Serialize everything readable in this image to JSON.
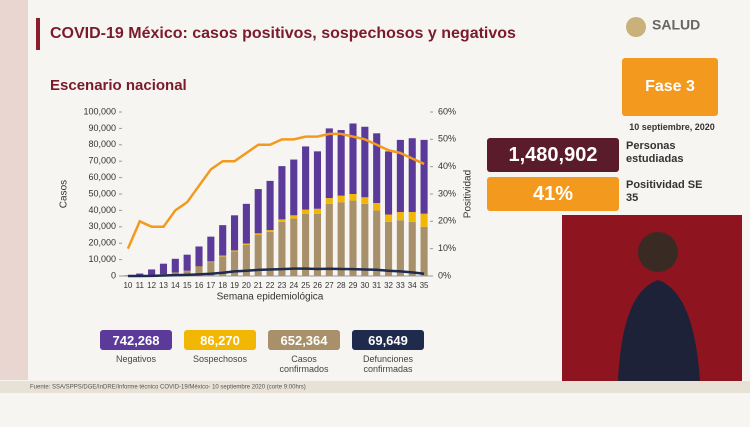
{
  "header": {
    "title": "COVID-19 México: casos positivos, sospechosos y negativos",
    "subtitle": "Escenario nacional",
    "logo": "SALUD",
    "phase": "Fase 3",
    "date": "10 septiembre, 2020"
  },
  "kpis": [
    {
      "value": "1,480,902",
      "label": "Personas estudiadas"
    },
    {
      "value": "41%",
      "label": "Positividad SE 35"
    }
  ],
  "totals": [
    "742,268",
    "86,270",
    "652,364",
    "69,649"
  ],
  "source": "Fuente: SSA/SPPS/DGE/InDRE/Informe técnico COVID-19/México- 10 septiembre 2020 (corte 9:00hrs)",
  "chart_data": {
    "type": "bar",
    "x_label": "Semana epidemiológica",
    "y_label": "Casos",
    "y2_label": "Positividad",
    "categories": [
      10,
      11,
      12,
      13,
      14,
      15,
      16,
      17,
      18,
      19,
      20,
      21,
      22,
      23,
      24,
      25,
      26,
      27,
      28,
      29,
      30,
      31,
      32,
      33,
      34,
      35
    ],
    "series": [
      {
        "name": "Negativos",
        "type": "bar",
        "color": "#5b3a99",
        "values": [
          300,
          1400,
          3450,
          6400,
          8400,
          9800,
          12200,
          15100,
          18500,
          21400,
          24200,
          27000,
          30000,
          32500,
          34000,
          38500,
          35000,
          42500,
          40000,
          43000,
          43000,
          42500,
          38500,
          44000,
          45000,
          45000
        ]
      },
      {
        "name": "Sospechosos",
        "type": "bar",
        "color": "#f2b705",
        "values": [
          0,
          0,
          50,
          100,
          100,
          200,
          300,
          400,
          500,
          600,
          800,
          1000,
          1000,
          1500,
          2000,
          2500,
          3000,
          3500,
          4000,
          4000,
          4000,
          4500,
          4500,
          5000,
          6000,
          8000
        ]
      },
      {
        "name": "Casos confirmados",
        "type": "bar",
        "color": "#a8906a",
        "values": [
          0,
          100,
          500,
          1000,
          2000,
          3000,
          5500,
          8500,
          12000,
          15000,
          19000,
          25000,
          27000,
          33000,
          35000,
          38000,
          38000,
          44000,
          45000,
          46000,
          44000,
          40000,
          33000,
          34000,
          33000,
          30000
        ]
      },
      {
        "name": "Defunciones confirmadas",
        "type": "line",
        "color": "#1f2a4d",
        "values": [
          0,
          20,
          80,
          300,
          500,
          700,
          1000,
          1400,
          2000,
          2800,
          3200,
          3700,
          4000,
          4200,
          4500,
          4500,
          4300,
          4400,
          4300,
          4200,
          4000,
          3800,
          3200,
          2800,
          2200,
          1400
        ]
      },
      {
        "type": "line",
        "axis": "y2",
        "color": "#f39a1e",
        "values": [
          10,
          20,
          18,
          18,
          24,
          27,
          33,
          39,
          42,
          42,
          45,
          48,
          48,
          50,
          50,
          51,
          51,
          52,
          52,
          51,
          50,
          48,
          46,
          45,
          43,
          41
        ]
      }
    ],
    "ylim": [
      0,
      100000
    ],
    "yticks": [
      {
        "value": 0,
        "label": "0"
      },
      {
        "value": 10000,
        "label": "10,000"
      },
      {
        "value": 20000,
        "label": "20,000"
      },
      {
        "value": 30000,
        "label": "30,000"
      },
      {
        "value": 40000,
        "label": "40,000"
      },
      {
        "value": 50000,
        "label": "50,000"
      },
      {
        "value": 60000,
        "label": "60,000"
      },
      {
        "value": 70000,
        "label": "70,000"
      },
      {
        "value": 80000,
        "label": "80,000"
      },
      {
        "value": 90000,
        "label": "90,000"
      },
      {
        "value": 100000,
        "label": "100,000"
      }
    ],
    "y2lim": [
      0,
      60
    ],
    "y2ticks": [
      {
        "value": 0,
        "label": "0%"
      },
      {
        "value": 10,
        "label": "10%"
      },
      {
        "value": 20,
        "label": "20%"
      },
      {
        "value": 30,
        "label": "30%"
      },
      {
        "value": 40,
        "label": "40%"
      },
      {
        "value": 50,
        "label": "50%"
      },
      {
        "value": 60,
        "label": "60%"
      }
    ],
    "grid": false
  }
}
